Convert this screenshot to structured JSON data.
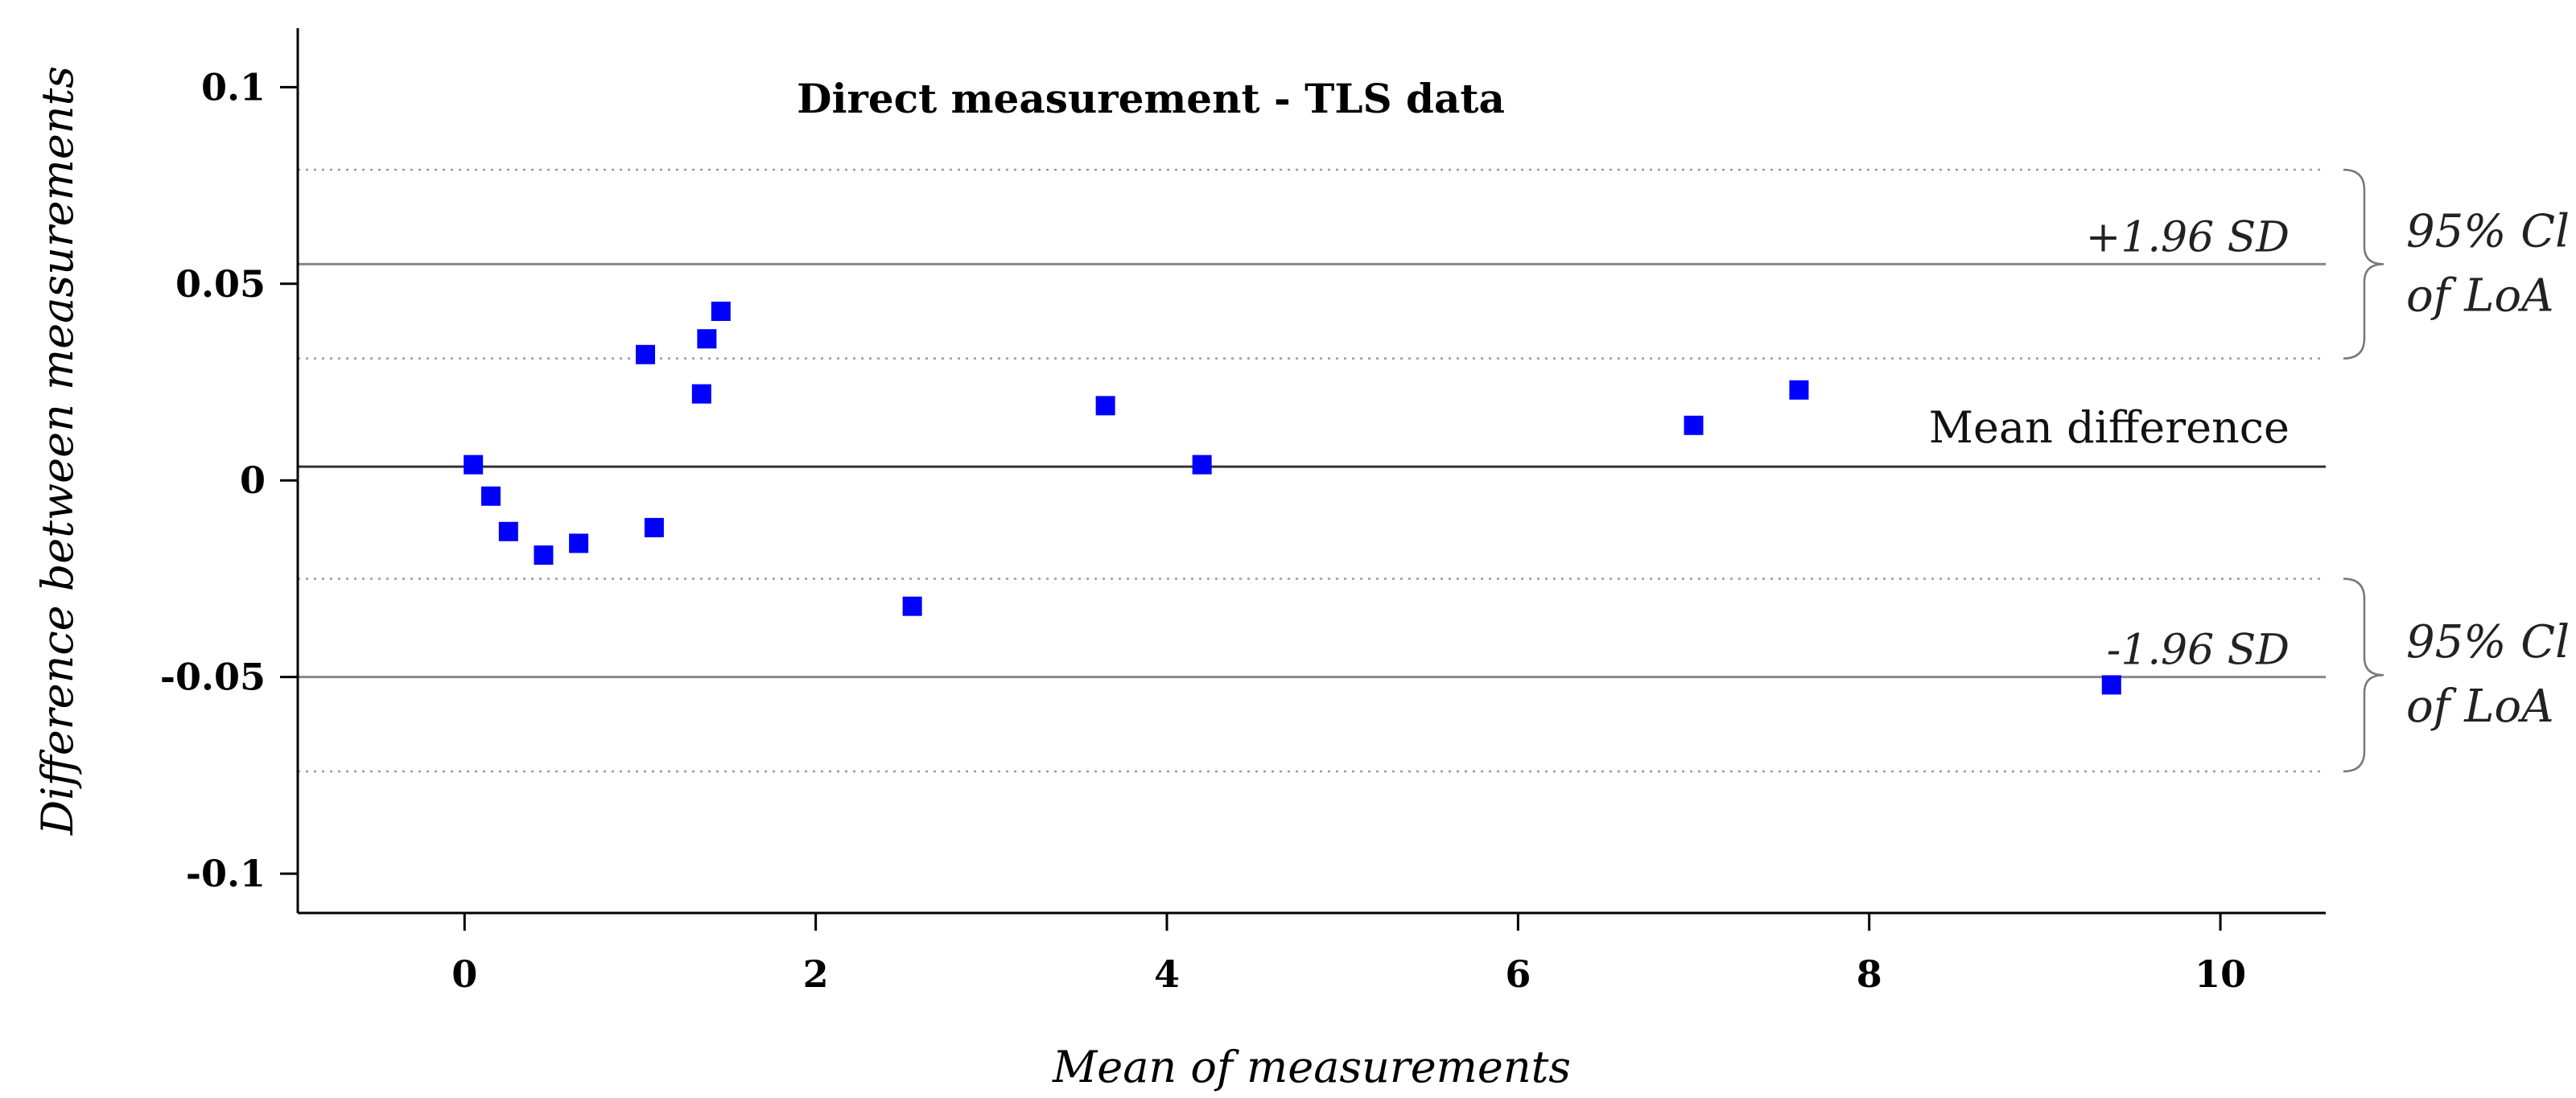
{
  "chart_data": {
    "type": "scatter",
    "title": "Direct measurement - TLS data",
    "xlabel": "Mean of measurements",
    "ylabel": "Difference between measurements",
    "xlim": [
      -0.95,
      10.6
    ],
    "ylim": [
      -0.11,
      0.115
    ],
    "xticks": [
      0,
      2,
      4,
      6,
      8,
      10
    ],
    "yticks": [
      0.1,
      0.05,
      0,
      -0.05,
      -0.1
    ],
    "ytick_labels": [
      "0.1",
      "0.05",
      "0",
      "-0.05",
      "-0.1"
    ],
    "grid": false,
    "points": [
      {
        "x": 0.05,
        "y": 0.004
      },
      {
        "x": 0.15,
        "y": -0.004
      },
      {
        "x": 0.25,
        "y": -0.013
      },
      {
        "x": 0.45,
        "y": -0.019
      },
      {
        "x": 0.65,
        "y": -0.016
      },
      {
        "x": 1.03,
        "y": 0.032
      },
      {
        "x": 1.08,
        "y": -0.012
      },
      {
        "x": 1.35,
        "y": 0.022
      },
      {
        "x": 1.38,
        "y": 0.036
      },
      {
        "x": 1.46,
        "y": 0.043
      },
      {
        "x": 2.55,
        "y": -0.032
      },
      {
        "x": 3.65,
        "y": 0.019
      },
      {
        "x": 4.2,
        "y": 0.004
      },
      {
        "x": 7.0,
        "y": 0.014
      },
      {
        "x": 7.6,
        "y": 0.023
      },
      {
        "x": 9.38,
        "y": -0.052
      }
    ],
    "reference_lines": {
      "mean": {
        "y": 0.0035,
        "label": "Mean difference"
      },
      "upper_loa": {
        "y": 0.055,
        "label": "+1.96 SD"
      },
      "lower_loa": {
        "y": -0.05,
        "label": "-1.96 SD"
      },
      "upper_ci": [
        0.031,
        0.079
      ],
      "lower_ci": [
        -0.074,
        -0.025
      ]
    },
    "ci_annotation": {
      "line1": "95% Cl",
      "line2": "of LoA"
    },
    "colors": {
      "points": "#0000ff",
      "lines": "#888888",
      "mean_line": "#333333"
    }
  }
}
